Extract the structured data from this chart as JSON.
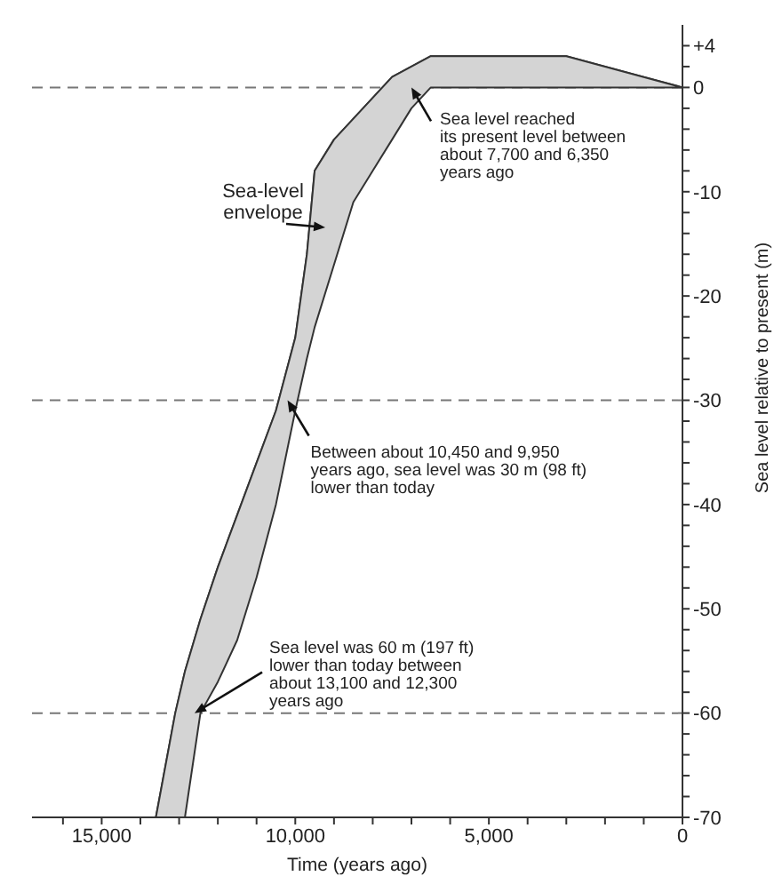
{
  "chart_data": {
    "type": "line",
    "xlabel": "Time (years ago)",
    "ylabel": "Sea level relative to present (m)",
    "xlim": [
      16800,
      0
    ],
    "ylim": [
      -70,
      6
    ],
    "xticks": [
      {
        "value": 16000,
        "label": null
      },
      {
        "value": 15000,
        "label": "15,000"
      },
      {
        "value": 14000,
        "label": null
      },
      {
        "value": 13000,
        "label": null
      },
      {
        "value": 12000,
        "label": null
      },
      {
        "value": 11000,
        "label": null
      },
      {
        "value": 10000,
        "label": "10,000"
      },
      {
        "value": 9000,
        "label": null
      },
      {
        "value": 8000,
        "label": null
      },
      {
        "value": 7000,
        "label": null
      },
      {
        "value": 6000,
        "label": null
      },
      {
        "value": 5000,
        "label": "5,000"
      },
      {
        "value": 4000,
        "label": null
      },
      {
        "value": 3000,
        "label": null
      },
      {
        "value": 2000,
        "label": null
      },
      {
        "value": 1000,
        "label": null
      },
      0
    ],
    "yticks": [
      {
        "value": 4,
        "label": "+4"
      },
      {
        "value": 2,
        "label": null
      },
      0,
      {
        "value": -2,
        "label": null
      },
      {
        "value": -4,
        "label": null
      },
      {
        "value": -6,
        "label": null
      },
      {
        "value": -8,
        "label": null
      },
      -10,
      {
        "value": -12,
        "label": null
      },
      {
        "value": -14,
        "label": null
      },
      {
        "value": -16,
        "label": null
      },
      {
        "value": -18,
        "label": null
      },
      -20,
      {
        "value": -22,
        "label": null
      },
      {
        "value": -24,
        "label": null
      },
      {
        "value": -26,
        "label": null
      },
      {
        "value": -28,
        "label": null
      },
      -30,
      {
        "value": -32,
        "label": null
      },
      {
        "value": -34,
        "label": null
      },
      {
        "value": -36,
        "label": null
      },
      {
        "value": -38,
        "label": null
      },
      -40,
      {
        "value": -42,
        "label": null
      },
      {
        "value": -44,
        "label": null
      },
      {
        "value": -46,
        "label": null
      },
      {
        "value": -48,
        "label": null
      },
      -50,
      {
        "value": -52,
        "label": null
      },
      {
        "value": -54,
        "label": null
      },
      {
        "value": -56,
        "label": null
      },
      {
        "value": -58,
        "label": null
      },
      -60,
      {
        "value": -62,
        "label": null
      },
      {
        "value": -64,
        "label": null
      },
      {
        "value": -66,
        "label": null
      },
      {
        "value": -68,
        "label": null
      },
      -70
    ],
    "grid": false,
    "legend": false,
    "series": [
      {
        "color": "#333333",
        "x": [
          13600,
          13100,
          12850,
          12450,
          12000,
          11500,
          11000,
          10500,
          10000,
          9700,
          9500,
          9000,
          8500,
          8000,
          7500,
          7000,
          6500,
          6000,
          5000,
          4000,
          3000,
          2000,
          1000,
          0
        ],
        "lower": [
          -70,
          -70,
          -70,
          -60,
          -57,
          -53,
          -47,
          -40,
          -31,
          -26,
          -23,
          -17,
          -11,
          -8,
          -5,
          -2,
          0,
          0,
          0,
          0,
          0,
          0,
          0,
          0
        ],
        "values": [
          -70,
          -60,
          -56,
          -51,
          -46,
          -41,
          -36,
          -31,
          -24,
          -16,
          -8,
          -5,
          -3,
          -1,
          1,
          2,
          3,
          3,
          3,
          3,
          3,
          2,
          1,
          0
        ],
        "upper": [
          -70,
          -60,
          -56,
          -51,
          -46,
          -41,
          -36,
          -31,
          -24,
          -16,
          -8,
          -5,
          -3,
          -1,
          1,
          2,
          3,
          3,
          3,
          3,
          3,
          2,
          1,
          0
        ]
      }
    ],
    "ref_lines": [
      {
        "axis": "y",
        "value": 0,
        "color": "#777777",
        "line_style": "dashed"
      },
      {
        "axis": "y",
        "value": -30,
        "color": "#777777",
        "line_style": "dashed"
      },
      {
        "axis": "y",
        "value": -60,
        "color": "#777777",
        "line_style": "dashed"
      }
    ],
    "annotations": [
      "Sea-level\nenvelope",
      {
        "text": "Sea level reached\nits present level between\nabout 7,700 and 6,350\nyears ago",
        "x": 7000,
        "y": 0
      },
      {
        "text": "Between about 10,450 and 9,950\nyears ago, sea level was 30 m (98 ft)\nlower than today",
        "x": 10200,
        "y": -30
      },
      {
        "text": "Sea level was 60 m (197 ft)\nlower than today between\nabout 13,100 and 12,300\nyears ago",
        "x": 12600,
        "y": -60
      }
    ]
  }
}
